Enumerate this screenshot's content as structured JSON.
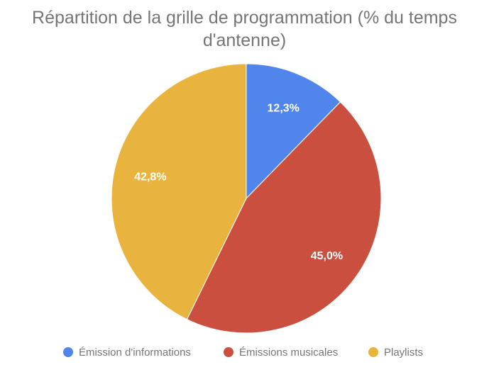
{
  "chart_data": {
    "type": "pie",
    "title_lines": [
      "Répartition de la grille de programmation (% du temps",
      "d'antenne)"
    ],
    "categories": [
      "Émission d'informations",
      "Émissions musicales",
      "Playlists"
    ],
    "values": [
      12.3,
      45.0,
      42.8
    ],
    "labels": [
      "12,3%",
      "45,0%",
      "42,8%"
    ],
    "colors": [
      "#5085EC",
      "#CB4F3E",
      "#E8B43D"
    ],
    "start": "top, clockwise",
    "legend_position": "bottom"
  }
}
